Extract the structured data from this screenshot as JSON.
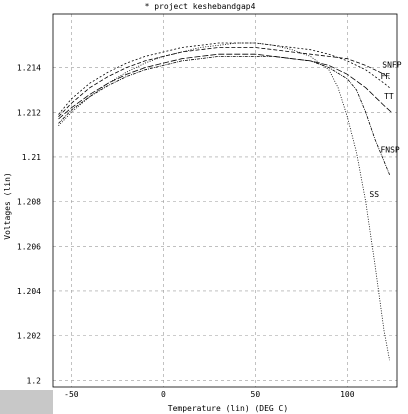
{
  "chart_data": {
    "type": "line",
    "title": "* project keshebandgap4",
    "xlabel": "Temperature (lin) (DEG C)",
    "ylabel": "Voltages (lin)",
    "xlim": [
      -60,
      127
    ],
    "ylim": [
      1.1997,
      1.2164
    ],
    "x_ticks": [
      -50,
      0,
      50,
      100
    ],
    "y_ticks": [
      1.2,
      1.202,
      1.204,
      1.206,
      1.208,
      1.21,
      1.212,
      1.214
    ],
    "x_tick_labels": [
      "-50",
      "0",
      "50",
      "100"
    ],
    "y_tick_labels": [
      "1.2",
      "1.202",
      "1.204",
      "1.206",
      "1.208",
      "1.21",
      "1.212",
      "1.214"
    ],
    "grid": true,
    "series": [
      {
        "name": "SNFP",
        "dash": "4 2",
        "points": [
          [
            -57,
            1.2118
          ],
          [
            -50,
            1.2124
          ],
          [
            -40,
            1.2131
          ],
          [
            -30,
            1.2136
          ],
          [
            -20,
            1.214
          ],
          [
            -10,
            1.2143
          ],
          [
            0,
            1.2145
          ],
          [
            10,
            1.2147
          ],
          [
            20,
            1.2148
          ],
          [
            30,
            1.2149
          ],
          [
            40,
            1.2149
          ],
          [
            50,
            1.2149
          ],
          [
            60,
            1.2148
          ],
          [
            70,
            1.2147
          ],
          [
            80,
            1.2146
          ],
          [
            90,
            1.2145
          ],
          [
            100,
            1.2144
          ],
          [
            110,
            1.2141
          ],
          [
            120,
            1.2137
          ],
          [
            123,
            1.2135
          ]
        ]
      },
      {
        "name": "FF",
        "dash": "2 2",
        "points": [
          [
            -57,
            1.2119
          ],
          [
            -50,
            1.2126
          ],
          [
            -40,
            1.2133
          ],
          [
            -30,
            1.2138
          ],
          [
            -20,
            1.2142
          ],
          [
            -10,
            1.2145
          ],
          [
            0,
            1.2147
          ],
          [
            10,
            1.2149
          ],
          [
            20,
            1.215
          ],
          [
            30,
            1.2151
          ],
          [
            40,
            1.2151
          ],
          [
            50,
            1.2151
          ],
          [
            60,
            1.215
          ],
          [
            70,
            1.2149
          ],
          [
            80,
            1.2148
          ],
          [
            90,
            1.2146
          ],
          [
            100,
            1.2143
          ],
          [
            110,
            1.2139
          ],
          [
            120,
            1.2133
          ],
          [
            123,
            1.2131
          ]
        ]
      },
      {
        "name": "TT",
        "dash": "6 2",
        "points": [
          [
            -57,
            1.2117
          ],
          [
            -50,
            1.2122
          ],
          [
            -40,
            1.2128
          ],
          [
            -30,
            1.2133
          ],
          [
            -20,
            1.2137
          ],
          [
            -10,
            1.214
          ],
          [
            0,
            1.2142
          ],
          [
            10,
            1.2144
          ],
          [
            20,
            1.2145
          ],
          [
            30,
            1.2146
          ],
          [
            40,
            1.2146
          ],
          [
            50,
            1.2146
          ],
          [
            60,
            1.2145
          ],
          [
            70,
            1.2144
          ],
          [
            80,
            1.2143
          ],
          [
            90,
            1.2141
          ],
          [
            100,
            1.2137
          ],
          [
            110,
            1.2131
          ],
          [
            120,
            1.2123
          ],
          [
            124,
            1.212
          ]
        ]
      },
      {
        "name": "FNSP",
        "dash": "3 1 1 1",
        "points": [
          [
            -57,
            1.2115
          ],
          [
            -50,
            1.2121
          ],
          [
            -40,
            1.2127
          ],
          [
            -30,
            1.2132
          ],
          [
            -20,
            1.2136
          ],
          [
            -10,
            1.2139
          ],
          [
            0,
            1.2141
          ],
          [
            10,
            1.2143
          ],
          [
            20,
            1.2144
          ],
          [
            30,
            1.2145
          ],
          [
            40,
            1.2145
          ],
          [
            50,
            1.2145
          ],
          [
            60,
            1.2145
          ],
          [
            70,
            1.2144
          ],
          [
            80,
            1.2143
          ],
          [
            90,
            1.214
          ],
          [
            100,
            1.2135
          ],
          [
            105,
            1.213
          ],
          [
            110,
            1.212
          ],
          [
            115,
            1.2108
          ],
          [
            120,
            1.2098
          ],
          [
            123,
            1.2092
          ]
        ]
      },
      {
        "name": "SS",
        "dash": "1 1.5",
        "points": [
          [
            -57,
            1.2114
          ],
          [
            -50,
            1.212
          ],
          [
            -40,
            1.2127
          ],
          [
            -30,
            1.2133
          ],
          [
            -20,
            1.2138
          ],
          [
            -10,
            1.2142
          ],
          [
            0,
            1.2145
          ],
          [
            10,
            1.2147
          ],
          [
            20,
            1.2149
          ],
          [
            30,
            1.215
          ],
          [
            40,
            1.2151
          ],
          [
            50,
            1.2151
          ],
          [
            60,
            1.215
          ],
          [
            70,
            1.2148
          ],
          [
            80,
            1.2145
          ],
          [
            90,
            1.2139
          ],
          [
            95,
            1.2131
          ],
          [
            100,
            1.2118
          ],
          [
            105,
            1.2102
          ],
          [
            110,
            1.208
          ],
          [
            115,
            1.2052
          ],
          [
            120,
            1.2022
          ],
          [
            123,
            1.2009
          ]
        ]
      }
    ],
    "series_label_anchor": [
      {
        "name": "SNFP",
        "at": [
          119,
          1.214
        ]
      },
      {
        "name": "FF",
        "at": [
          118,
          1.2135
        ]
      },
      {
        "name": "TT",
        "at": [
          120,
          1.2126
        ]
      },
      {
        "name": "FNSP",
        "at": [
          118,
          1.2102
        ]
      },
      {
        "name": "SS",
        "at": [
          112,
          1.2082
        ]
      }
    ]
  }
}
